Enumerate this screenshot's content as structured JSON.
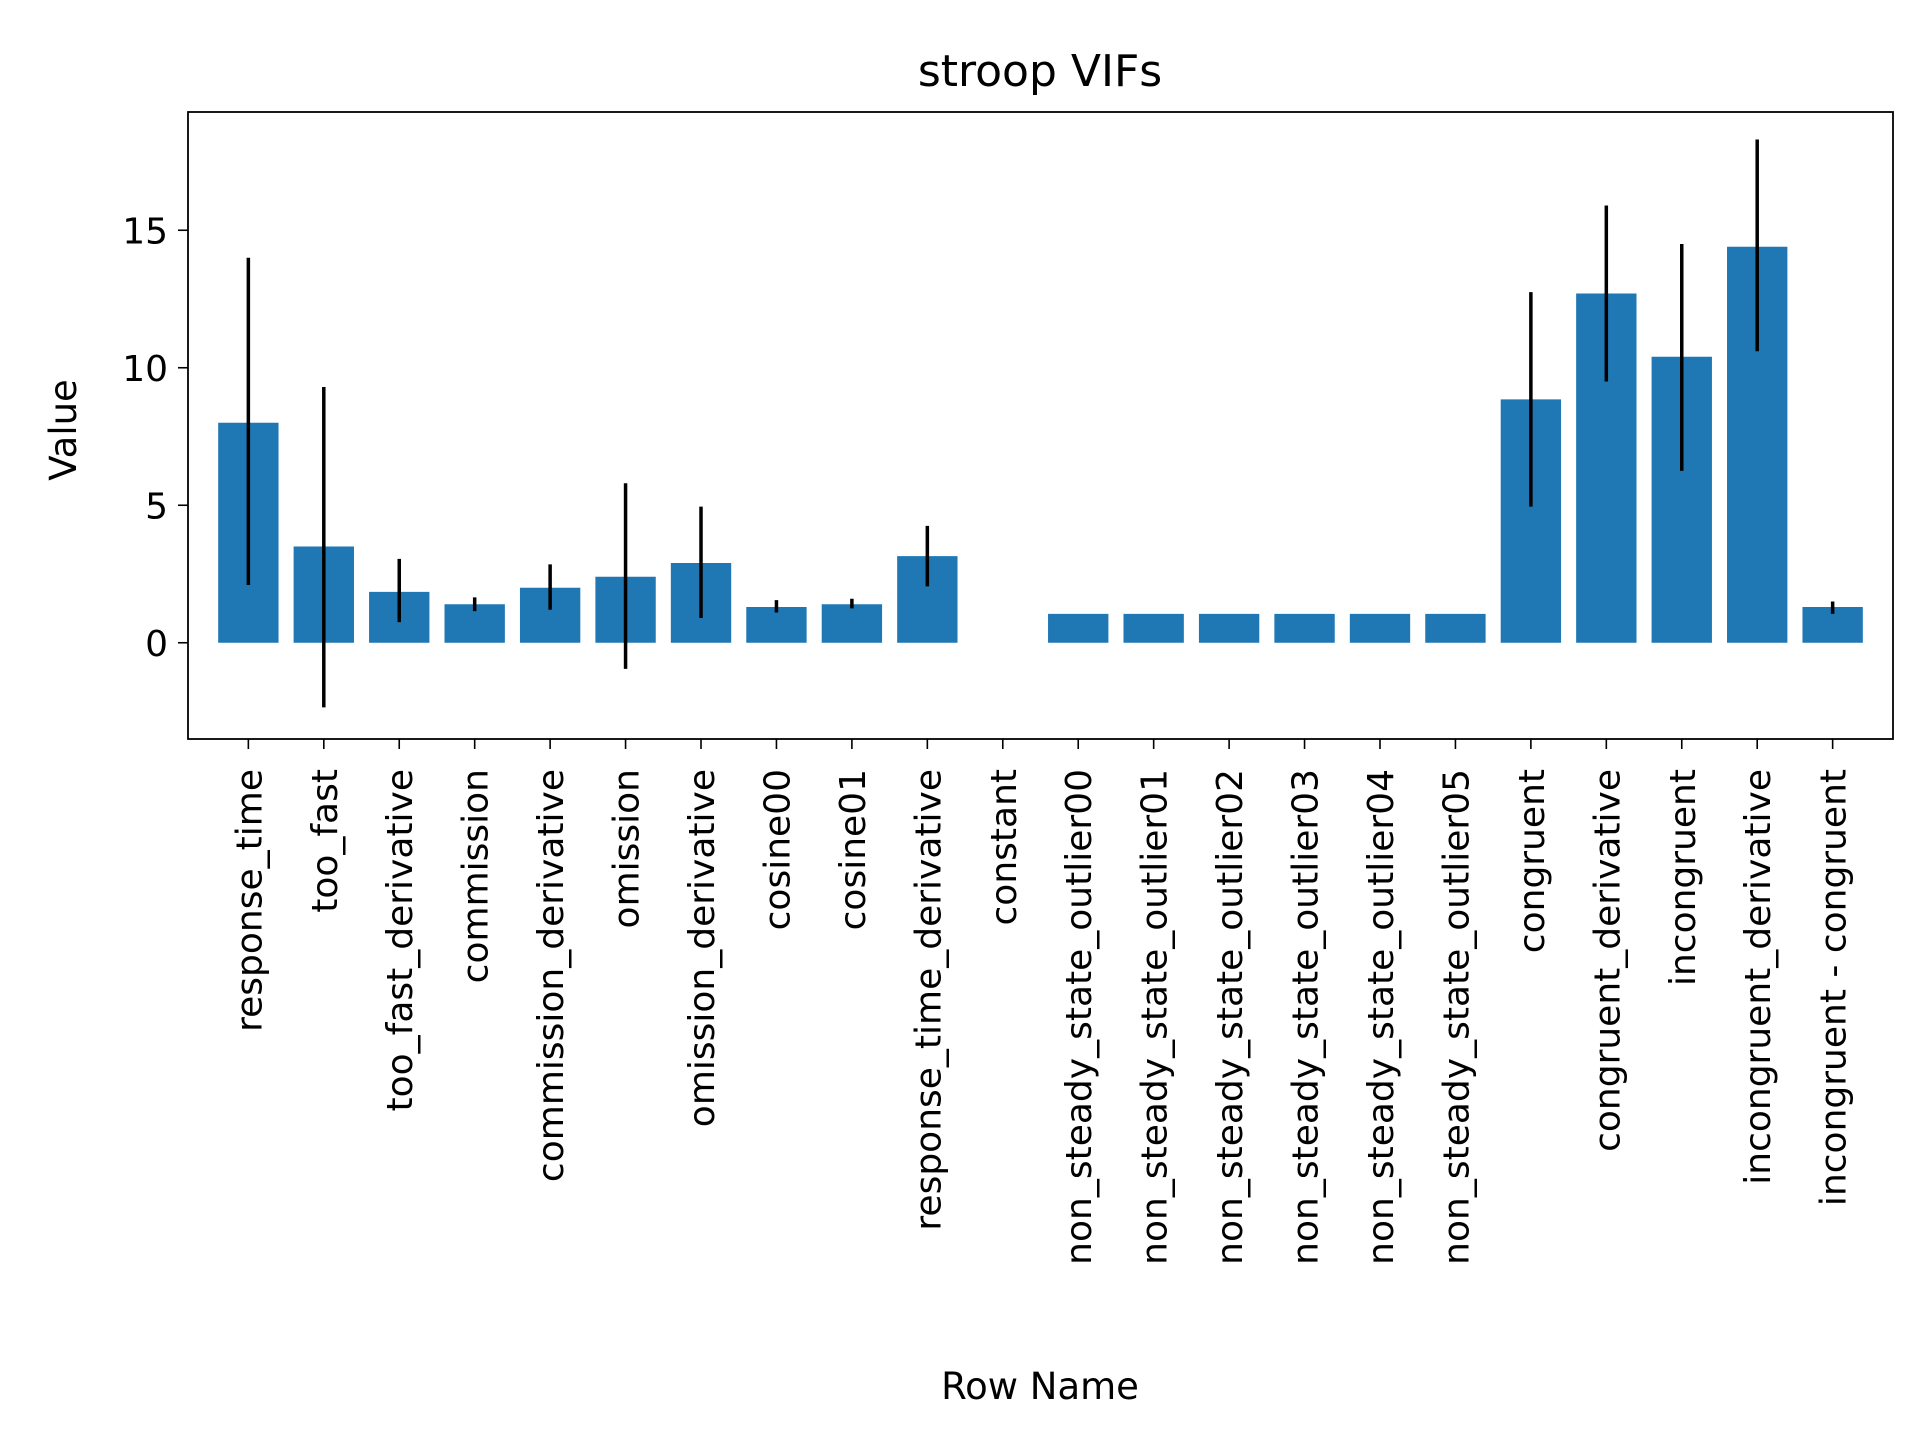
{
  "chart_data": {
    "type": "bar",
    "title": "stroop VIFs",
    "xlabel": "Row Name",
    "ylabel": "Value",
    "ylim": [
      -3.5,
      19.3
    ],
    "yticks": [
      0,
      5,
      10,
      15
    ],
    "grid": false,
    "bar_color": "#1f77b4",
    "errorbar_color": "#000000",
    "categories": [
      "response_time",
      "too_fast",
      "too_fast_derivative",
      "commission",
      "commission_derivative",
      "omission",
      "omission_derivative",
      "cosine00",
      "cosine01",
      "response_time_derivative",
      "constant",
      "non_steady_state_outlier00",
      "non_steady_state_outlier01",
      "non_steady_state_outlier02",
      "non_steady_state_outlier03",
      "non_steady_state_outlier04",
      "non_steady_state_outlier05",
      "congruent",
      "congruent_derivative",
      "incongruent",
      "incongruent_derivative",
      "incongruent - congruent"
    ],
    "values": [
      8.0,
      3.5,
      1.85,
      1.4,
      2.0,
      2.4,
      2.9,
      1.3,
      1.4,
      3.15,
      null,
      1.05,
      1.05,
      1.05,
      1.05,
      1.05,
      1.05,
      8.85,
      12.7,
      10.4,
      14.4,
      1.3
    ],
    "error_low": [
      2.1,
      -2.35,
      0.75,
      1.15,
      1.2,
      -0.95,
      0.9,
      1.1,
      1.25,
      2.05,
      null,
      1.05,
      1.05,
      1.05,
      1.05,
      1.05,
      1.05,
      4.95,
      9.5,
      6.25,
      10.6,
      1.05
    ],
    "error_high": [
      14.0,
      9.3,
      3.05,
      1.65,
      2.85,
      5.8,
      4.95,
      1.55,
      1.6,
      4.25,
      null,
      1.05,
      1.05,
      1.05,
      1.05,
      1.05,
      1.05,
      12.75,
      15.9,
      14.5,
      18.3,
      1.5
    ]
  }
}
